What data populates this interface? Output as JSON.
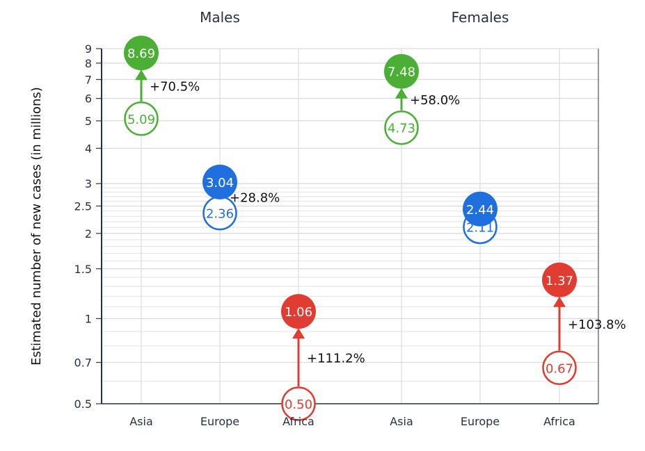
{
  "chart_data": {
    "type": "scatter",
    "ylabel": "Estimated number of new cases (in millions)",
    "yscale": "log",
    "ylim": [
      0.5,
      9
    ],
    "yticks": [
      0.5,
      0.7,
      1,
      1.5,
      2,
      2.5,
      3,
      4,
      5,
      6,
      7,
      8,
      9
    ],
    "grid": true,
    "panels": [
      {
        "title": "Males",
        "categories": [
          "Asia",
          "Europe",
          "Africa"
        ],
        "from": [
          5.09,
          2.36,
          0.5
        ],
        "to": [
          8.69,
          3.04,
          1.06
        ],
        "change": [
          "+70.5%",
          "+28.8%",
          "+111.2%"
        ]
      },
      {
        "title": "Females",
        "categories": [
          "Asia",
          "Europe",
          "Africa"
        ],
        "from": [
          4.73,
          2.11,
          0.67
        ],
        "to": [
          7.48,
          2.44,
          1.37
        ],
        "change": [
          "+58.0%",
          "",
          "+103.8%"
        ]
      }
    ],
    "colors": {
      "Asia": "#4caf35",
      "Europe": "#1f6fde",
      "Africa": "#e03c31"
    }
  }
}
